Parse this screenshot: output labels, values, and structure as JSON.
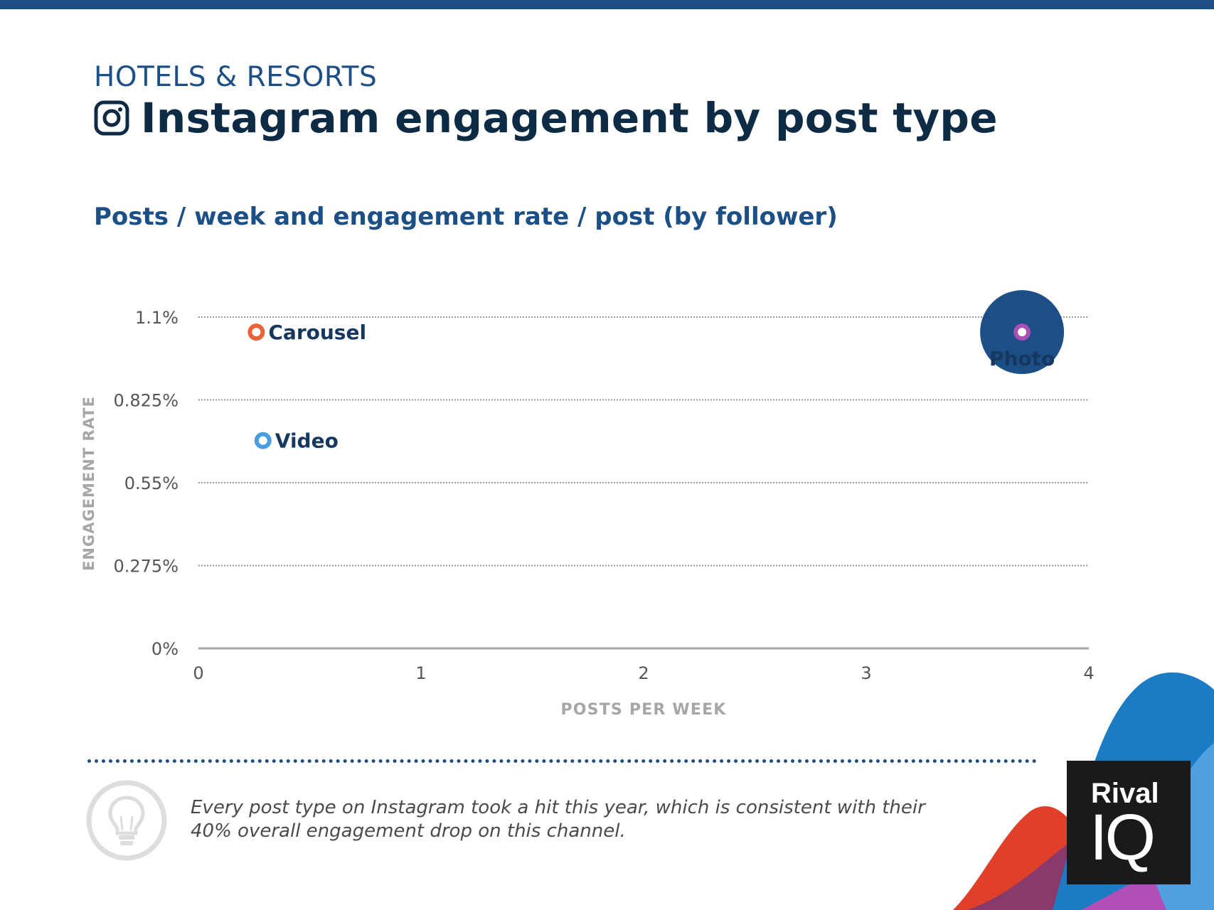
{
  "header": {
    "category": "HOTELS & RESORTS",
    "title": "Instagram engagement by post type",
    "subtitle": "Posts / week and engagement rate / post (by follower)"
  },
  "chart_data": {
    "type": "scatter",
    "xlabel": "POSTS PER WEEK",
    "ylabel": "ENGAGEMENT RATE",
    "xlim": [
      0,
      4
    ],
    "ylim": [
      0,
      1.1
    ],
    "x_ticks": [
      "0",
      "1",
      "2",
      "3",
      "4"
    ],
    "y_ticks": [
      "0%",
      "0.275%",
      "0.55%",
      "0.825%",
      "1.1%"
    ],
    "grid": true,
    "points": [
      {
        "name": "Carousel",
        "x": 0.26,
        "y": 1.05,
        "color": "#e8623a"
      },
      {
        "name": "Video",
        "x": 0.29,
        "y": 0.69,
        "color": "#4a9de0"
      },
      {
        "name": "Photo",
        "x": 3.7,
        "y": 1.05,
        "color": "#a64fb4",
        "highlight_color": "#1b4f86"
      }
    ]
  },
  "footer": {
    "insight": "Every post type on Instagram took a hit this year, which is consistent with their 40% overall engagement drop on this channel.",
    "logo_line1": "Rival",
    "logo_line2": "IQ"
  },
  "colors": {
    "brand_blue": "#1b4f86",
    "title_navy": "#0e2b46",
    "axis_gray": "#a6a6a6"
  },
  "icons": {
    "title_icon": "instagram-icon",
    "tip_icon": "lightbulb-icon"
  }
}
